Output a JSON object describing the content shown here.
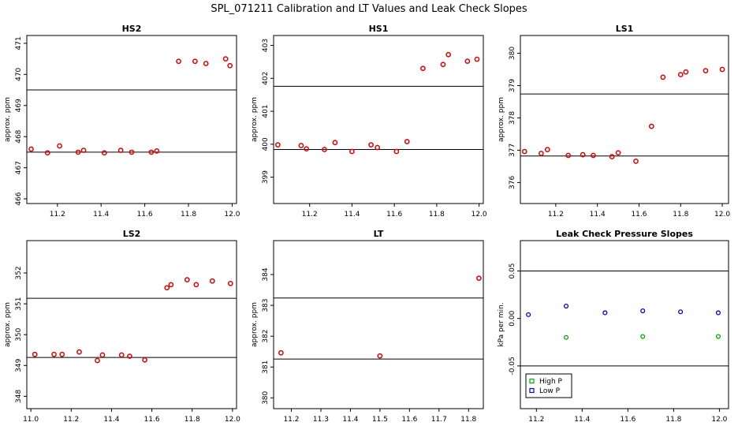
{
  "figure_title": "SPL_071211  Calibration and LT Values and Leak Check Slopes",
  "chart_data": [
    {
      "type": "scatter",
      "title": "HS2",
      "ylabel": "approx. ppm",
      "xlim": [
        11.06,
        12.02
      ],
      "ylim": [
        465.85,
        471.25
      ],
      "xticks": [
        "11.2",
        "11.4",
        "11.6",
        "11.8",
        "12.0"
      ],
      "yticks": [
        "466",
        "467",
        "468",
        "469",
        "470",
        "471"
      ],
      "hlines": [
        467.5,
        469.5
      ],
      "series": [
        {
          "name": "values",
          "color": "#dd0000",
          "x": [
            11.08,
            11.155,
            11.21,
            11.295,
            11.32,
            11.415,
            11.49,
            11.54,
            11.63,
            11.655,
            11.755,
            11.83,
            11.88,
            11.97,
            11.99
          ],
          "y": [
            467.6,
            467.48,
            467.7,
            467.5,
            467.56,
            467.48,
            467.56,
            467.5,
            467.5,
            467.54,
            470.42,
            470.42,
            470.35,
            470.5,
            470.28
          ]
        }
      ]
    },
    {
      "type": "scatter",
      "title": "HS1",
      "ylabel": "approx. ppm",
      "xlim": [
        11.03,
        12.02
      ],
      "ylim": [
        398.2,
        403.3
      ],
      "xticks": [
        "11.2",
        "11.4",
        "11.6",
        "11.8",
        "12.0"
      ],
      "yticks": [
        "399",
        "400",
        "401",
        "402",
        "403"
      ],
      "hlines": [
        399.84,
        401.76
      ],
      "series": [
        {
          "name": "values",
          "color": "#dd0000",
          "x": [
            11.05,
            11.16,
            11.185,
            11.27,
            11.32,
            11.4,
            11.49,
            11.52,
            11.61,
            11.66,
            11.735,
            11.83,
            11.855,
            11.945,
            11.99
          ],
          "y": [
            399.98,
            399.96,
            399.86,
            399.84,
            400.05,
            399.78,
            399.98,
            399.9,
            399.78,
            400.08,
            402.3,
            402.42,
            402.72,
            402.52,
            402.58
          ]
        }
      ]
    },
    {
      "type": "scatter",
      "title": "LS1",
      "ylabel": "approx. ppm",
      "xlim": [
        11.03,
        12.03
      ],
      "ylim": [
        375.35,
        380.55
      ],
      "xticks": [
        "11.2",
        "11.4",
        "11.6",
        "11.8",
        "12.0"
      ],
      "yticks": [
        "376",
        "377",
        "378",
        "379",
        "380"
      ],
      "hlines": [
        376.82,
        378.74
      ],
      "series": [
        {
          "name": "values",
          "color": "#dd0000",
          "x": [
            11.05,
            11.13,
            11.16,
            11.26,
            11.33,
            11.38,
            11.47,
            11.5,
            11.585,
            11.66,
            11.715,
            11.8,
            11.825,
            11.92,
            12.0
          ],
          "y": [
            376.96,
            376.9,
            377.02,
            376.84,
            376.86,
            376.84,
            376.8,
            376.92,
            376.66,
            377.74,
            379.26,
            379.34,
            379.42,
            379.46,
            379.5
          ]
        }
      ]
    },
    {
      "type": "scatter",
      "title": "LS2",
      "ylabel": "approx. ppm",
      "xlim": [
        10.98,
        12.02
      ],
      "ylim": [
        347.6,
        353.05
      ],
      "xticks": [
        "11.0",
        "11.2",
        "11.4",
        "11.6",
        "11.8",
        "12.0"
      ],
      "yticks": [
        "348",
        "349",
        "350",
        "351",
        "352"
      ],
      "hlines": [
        349.26,
        351.18
      ],
      "series": [
        {
          "name": "values",
          "color": "#dd0000",
          "x": [
            11.02,
            11.115,
            11.155,
            11.24,
            11.33,
            11.355,
            11.45,
            11.49,
            11.565,
            11.675,
            11.695,
            11.775,
            11.82,
            11.9,
            11.99
          ],
          "y": [
            349.36,
            349.36,
            349.36,
            349.44,
            349.16,
            349.34,
            349.34,
            349.3,
            349.18,
            351.52,
            351.62,
            351.78,
            351.62,
            351.74,
            351.66
          ]
        }
      ]
    },
    {
      "type": "scatter",
      "title": "LT",
      "ylabel": "approx. ppm",
      "xlim": [
        11.14,
        11.85
      ],
      "ylim": [
        379.65,
        385.1
      ],
      "xticks": [
        "11.2",
        "11.3",
        "11.4",
        "11.5",
        "11.6",
        "11.7",
        "11.8"
      ],
      "yticks": [
        "380",
        "381",
        "382",
        "383",
        "384"
      ],
      "hlines": [
        381.26,
        383.24
      ],
      "series": [
        {
          "name": "values",
          "color": "#dd0000",
          "x": [
            11.165,
            11.5,
            11.835
          ],
          "y": [
            381.46,
            381.36,
            383.88
          ]
        }
      ]
    },
    {
      "type": "scatter",
      "title": "Leak Check Pressure Slopes",
      "ylabel": "kPa per min.",
      "xlim": [
        11.13,
        12.04
      ],
      "ylim": [
        -0.095,
        0.082
      ],
      "xticks": [
        "11.2",
        "11.4",
        "11.6",
        "11.8",
        "12.0"
      ],
      "yticks": [
        "-0.05",
        "0.00",
        "0.05"
      ],
      "hlines": [
        0.05,
        -0.05
      ],
      "legend": {
        "position": "bottom-left",
        "entries": [
          "High P",
          "Low P"
        ]
      },
      "series": [
        {
          "name": "High P",
          "color": "#00aa00",
          "x": [
            11.33,
            11.665,
            11.995
          ],
          "y": [
            -0.02,
            -0.019,
            -0.019
          ]
        },
        {
          "name": "Low P",
          "color": "#0000dd",
          "x": [
            11.165,
            11.33,
            11.5,
            11.665,
            11.83,
            11.995
          ],
          "y": [
            0.004,
            0.013,
            0.006,
            0.008,
            0.007,
            0.006
          ]
        }
      ]
    }
  ]
}
